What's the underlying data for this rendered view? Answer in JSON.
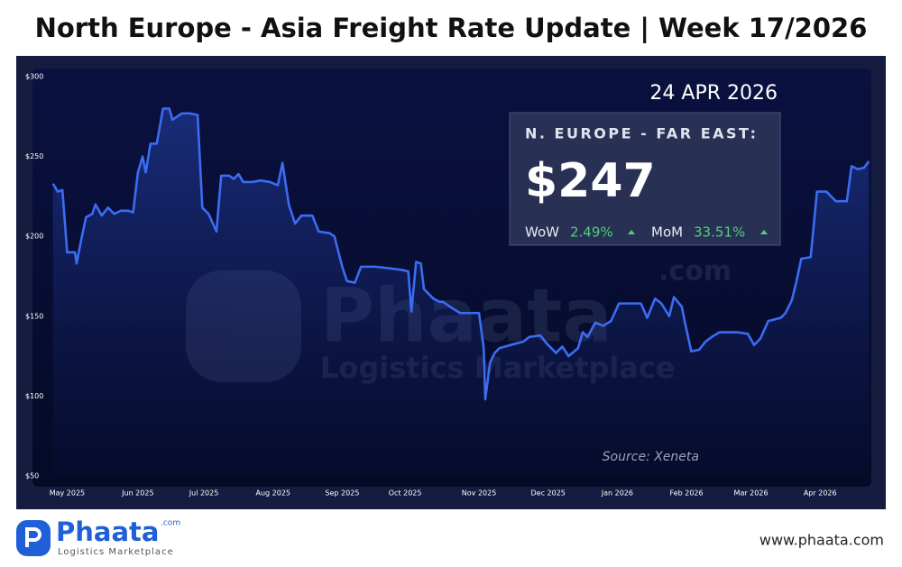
{
  "chart_data": {
    "type": "line",
    "title": "North Europe - Asia Freight Rate Update | Week 17/2026",
    "date": "24 APR 2026",
    "heading": "N. EUROPE - FAR EAST:",
    "price": "$247",
    "wow_label": "WoW",
    "wow": "2.49%",
    "mom_label": "MoM",
    "mom": "33.51%",
    "source": "Source: Xeneta",
    "brand": "Phaata",
    "brand_suffix": ".com",
    "brand_tagline": "Logistics Marketplace",
    "website": "www.phaata.com",
    "x": [
      -0.9,
      -0.6,
      -0.3,
      0,
      0.5,
      0.6,
      0.9,
      1.2,
      1.6,
      1.8,
      2.2,
      2.6,
      3.0,
      3.4,
      3.9,
      4.2,
      4.5,
      4.8,
      5.0,
      5.3,
      5.7,
      6.1,
      6.5,
      6.7,
      7.3,
      7.8,
      8.3,
      8.6,
      9.0,
      9.5,
      9.8,
      10.3,
      10.6,
      10.9,
      11.2,
      11.8,
      12.3,
      12.9,
      13.4,
      13.7,
      14.1,
      14.5,
      14.9,
      15.6,
      16.0,
      16.7,
      17.0,
      17.5,
      17.8,
      18.3,
      18.7,
      19.6,
      20.5,
      21.3,
      21.7,
      21.9,
      22.2,
      22.5,
      22.7,
      23.3,
      23.7,
      23.9,
      24.5,
      25.0,
      26.2,
      26.5,
      26.6,
      26.9,
      27.2,
      27.5,
      28.2,
      29.0,
      29.4,
      30.1,
      30.5,
      31.1,
      31.5,
      31.9,
      32.5,
      32.8,
      33.1,
      33.6,
      34.1,
      34.6,
      35.1,
      35.9,
      36.5,
      36.9,
      37.4,
      37.8,
      38.3,
      38.6,
      39.1,
      39.3,
      39.7,
      40.2,
      40.6,
      41.0,
      41.5,
      42.2,
      42.6,
      43.3,
      43.7,
      44.1,
      44.6,
      45.4,
      45.7,
      46.1,
      46.4,
      46.7,
      47.3,
      47.7,
      48.3,
      48.9,
      49.6,
      49.9,
      50.3,
      50.7,
      51.0
    ],
    "series": [
      {
        "color": "#3b6cf2",
        "values": [
          233,
          228,
          229,
          190,
          190,
          183,
          198,
          212,
          214,
          220,
          213,
          218,
          214,
          216,
          216,
          215,
          240,
          250,
          240,
          258,
          258,
          280,
          280,
          273,
          277,
          277,
          276,
          218,
          214,
          203,
          238,
          238,
          236,
          239,
          234,
          234,
          235,
          234,
          232,
          246,
          220,
          208,
          213,
          213,
          203,
          202,
          200,
          181,
          172,
          171,
          181,
          181,
          180,
          179,
          178,
          153,
          184,
          183,
          167,
          161,
          159,
          159,
          155,
          152,
          152,
          130,
          98,
          121,
          127,
          130,
          132,
          134,
          137,
          138,
          133,
          127,
          131,
          125,
          130,
          140,
          137,
          146,
          144,
          147,
          158,
          158,
          158,
          149,
          161,
          158,
          150,
          162,
          156,
          146,
          128,
          129,
          134,
          137,
          140,
          140,
          140,
          139,
          132,
          136,
          147,
          149,
          152,
          160,
          172,
          186,
          187,
          228,
          228,
          222,
          222,
          244,
          242,
          243,
          247
        ]
      }
    ],
    "xlim": [
      -1,
      51.1
    ],
    "xticks": [
      {
        "value": 0,
        "label": "May 2025"
      },
      {
        "value": 4.5,
        "label": "Jun 2025"
      },
      {
        "value": 8.7,
        "label": "Jul 2025"
      },
      {
        "value": 13.1,
        "label": "Aug 2025"
      },
      {
        "value": 17.5,
        "label": "Sep 2025"
      },
      {
        "value": 21.5,
        "label": "Oct 2025"
      },
      {
        "value": 26.2,
        "label": "Nov 2025"
      },
      {
        "value": 30.6,
        "label": "Dec 2025"
      },
      {
        "value": 35.0,
        "label": "Jan 2026"
      },
      {
        "value": 39.4,
        "label": "Feb 2026"
      },
      {
        "value": 43.5,
        "label": "Mar 2026"
      },
      {
        "value": 47.9,
        "label": "Apr 2026"
      }
    ],
    "ylim": [
      50,
      300
    ],
    "yticks": [
      {
        "value": 50,
        "label": "$50"
      },
      {
        "value": 100,
        "label": "$100"
      },
      {
        "value": 150,
        "label": "$150"
      },
      {
        "value": 200,
        "label": "$200"
      },
      {
        "value": 250,
        "label": "$250"
      },
      {
        "value": 300,
        "label": "$300"
      }
    ],
    "grid": false
  }
}
